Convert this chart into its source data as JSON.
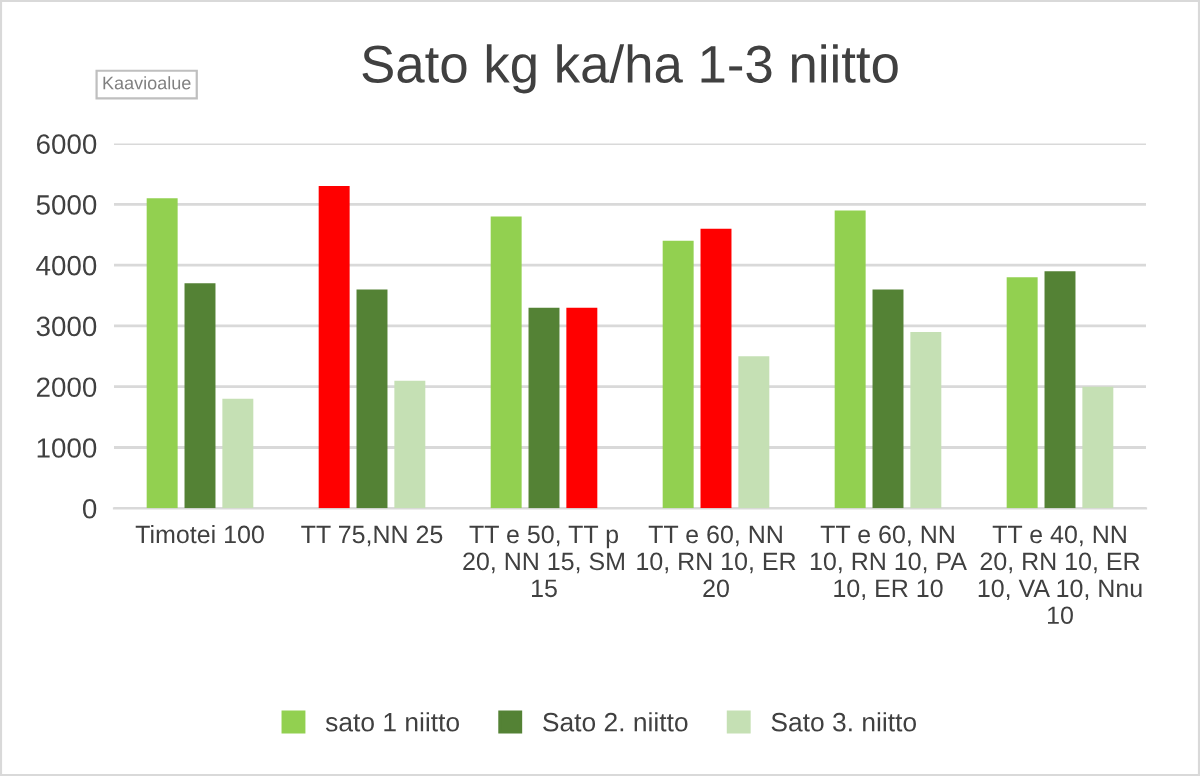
{
  "chart_data": {
    "type": "bar",
    "title": "Sato kg ka/ha 1-3 niitto",
    "categories": [
      "Timotei 100",
      "TT 75,NN 25",
      "TT e 50, TT p 20, NN 15, SM 15",
      "TT e 60, NN 10, RN 10, ER 20",
      "TT e 60, NN 10, RN 10, PA 10, ER 10",
      "TT e 40, NN 20, RN 10, ER 10, VA 10, Nnu 10"
    ],
    "series": [
      {
        "name": "sato 1 niitto",
        "color": "#92d050",
        "colors": [
          "#92d050",
          "#ff0000",
          "#92d050",
          "#92d050",
          "#92d050",
          "#92d050"
        ],
        "values": [
          5100,
          5300,
          4800,
          4400,
          4900,
          3800
        ]
      },
      {
        "name": "Sato 2. niitto",
        "color": "#548235",
        "colors": [
          "#548235",
          "#548235",
          "#548235",
          "#ff0000",
          "#548235",
          "#548235"
        ],
        "values": [
          3700,
          3600,
          3300,
          4600,
          3600,
          3900
        ]
      },
      {
        "name": "Sato 3. niitto",
        "color": "#c5e0b4",
        "colors": [
          "#c5e0b4",
          "#c5e0b4",
          "#ff0000",
          "#c5e0b4",
          "#c5e0b4",
          "#c5e0b4"
        ],
        "values": [
          1800,
          2100,
          3300,
          2500,
          2900,
          2000
        ]
      }
    ],
    "ylim": [
      0,
      6000
    ],
    "yticks": [
      0,
      1000,
      2000,
      3000,
      4000,
      5000,
      6000
    ],
    "grid": "y",
    "legend": "bottom",
    "annotations": [
      "Kaavioalue"
    ]
  }
}
